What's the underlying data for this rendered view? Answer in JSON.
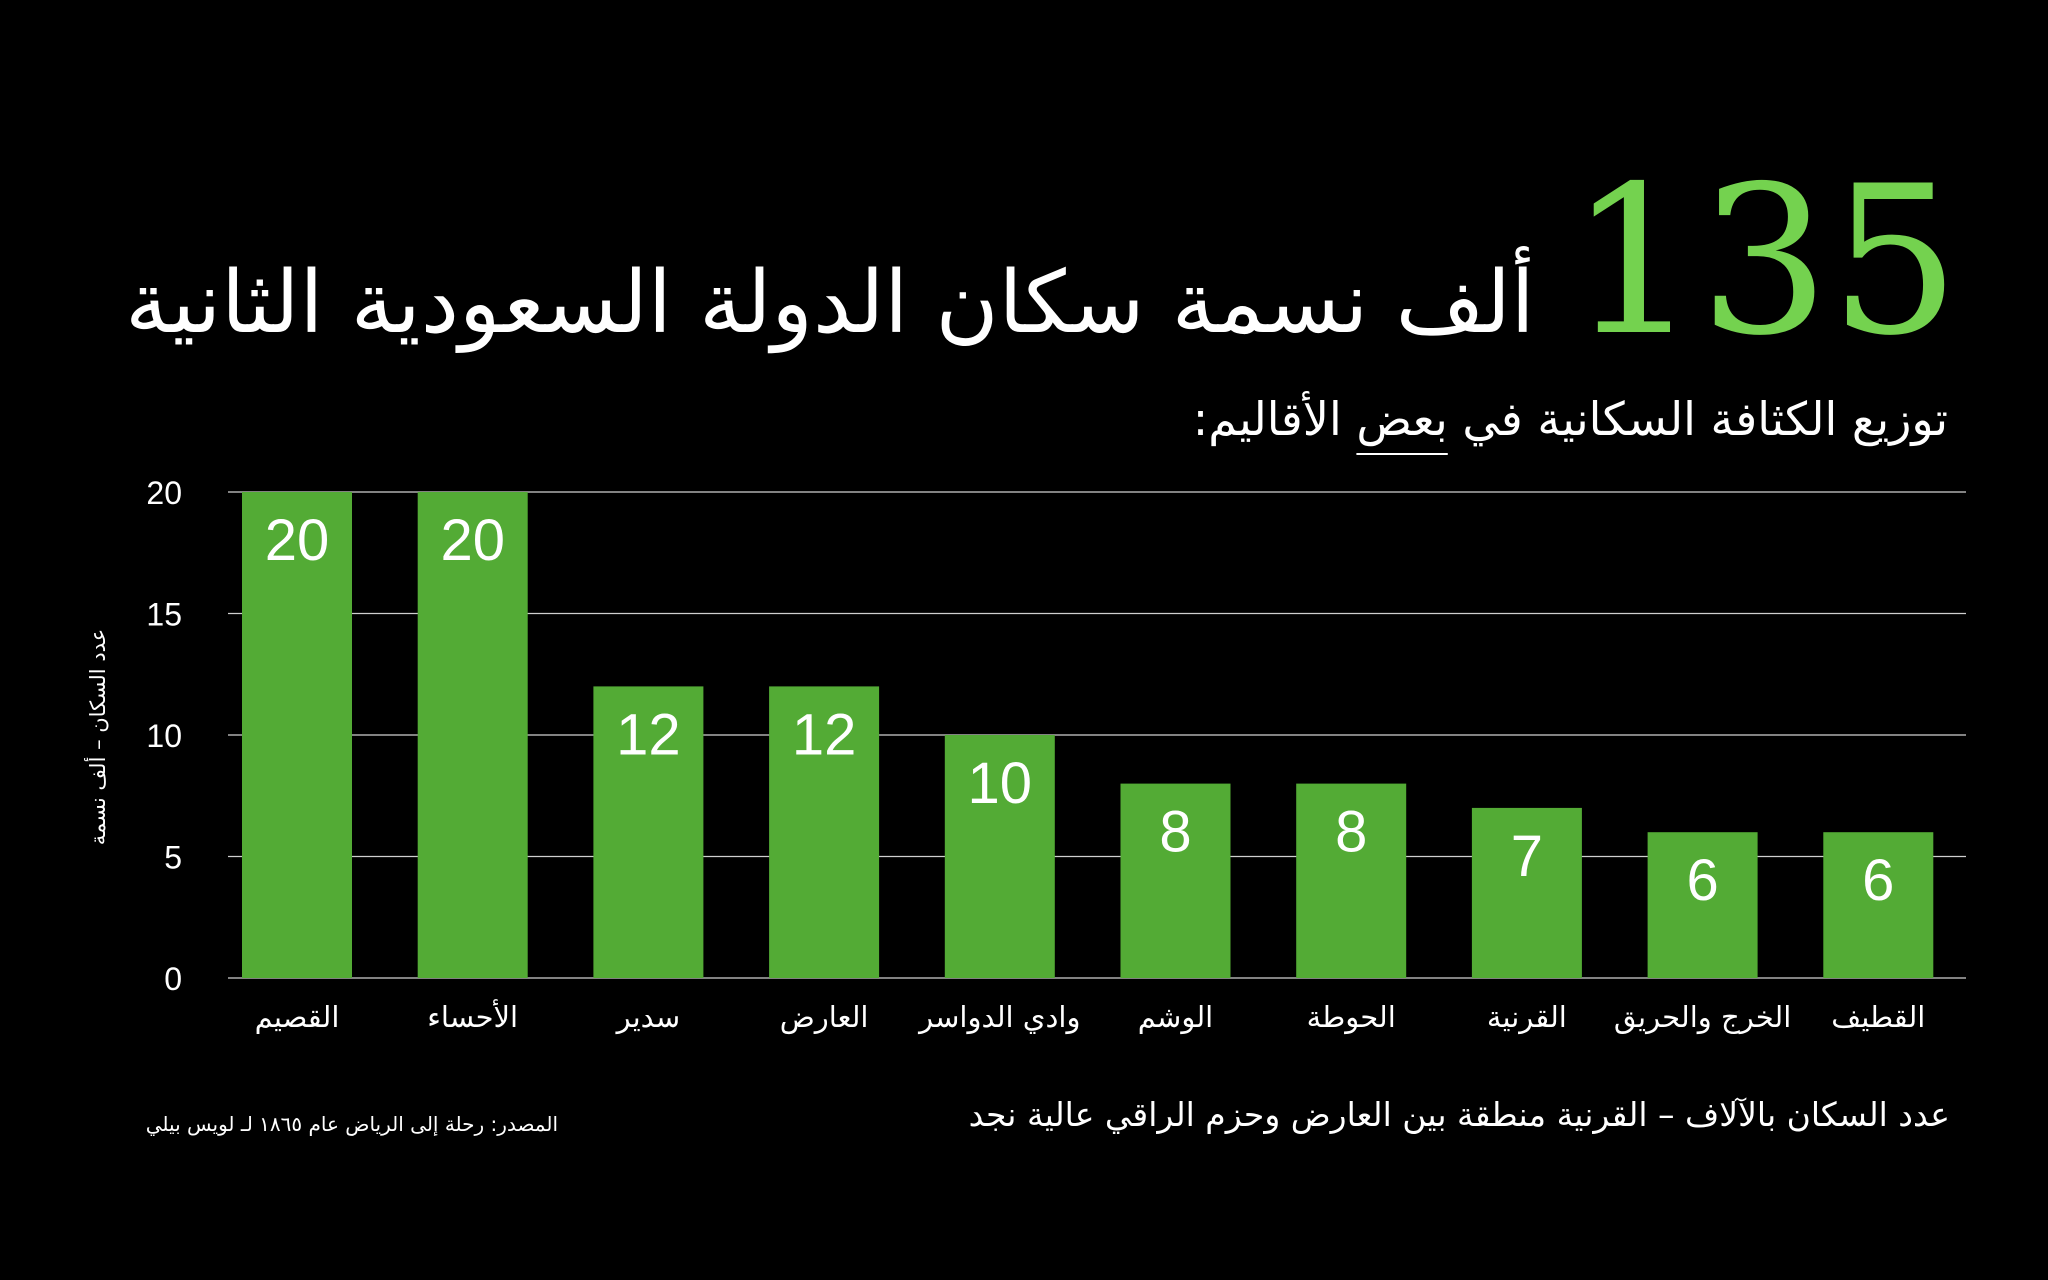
{
  "headline": {
    "number": "135",
    "text": "ألف نسمة سكان الدولة السعودية الثانية"
  },
  "subtitle": {
    "before": "توزيع الكثافة السكانية في ",
    "underlined": "بعض",
    "after": " الأقاليم:"
  },
  "footnote": "عدد السكان بالآلاف – القرنية منطقة بين العارض وحزم الراقي عالية نجد",
  "source": "المصدر: رحلة إلى الرياض عام ١٨٦٥ لـ لويس بيلي",
  "colors": {
    "bar": "#53ab35",
    "accent": "#74d24f",
    "background": "#000000",
    "grid": "#cfcfcf"
  },
  "chart_data": {
    "type": "bar",
    "categories": [
      "القصيم",
      "الأحساء",
      "سدير",
      "العارض",
      "وادي الدواسر",
      "الوشم",
      "الحوطة",
      "القرنية",
      "الخرج والحريق",
      "القطيف"
    ],
    "values": [
      20,
      20,
      12,
      12,
      10,
      8,
      8,
      7,
      6,
      6
    ],
    "data_labels": [
      "20",
      "20",
      "12",
      "12",
      "10",
      "8",
      "8",
      "7",
      "6",
      "6"
    ],
    "ylabel": "عدد السكان – ألف نسمة",
    "xlabel": "",
    "ylim": [
      0,
      20
    ],
    "yticks": [
      0,
      5,
      10,
      15,
      20
    ],
    "grid": true,
    "legend": "none"
  }
}
